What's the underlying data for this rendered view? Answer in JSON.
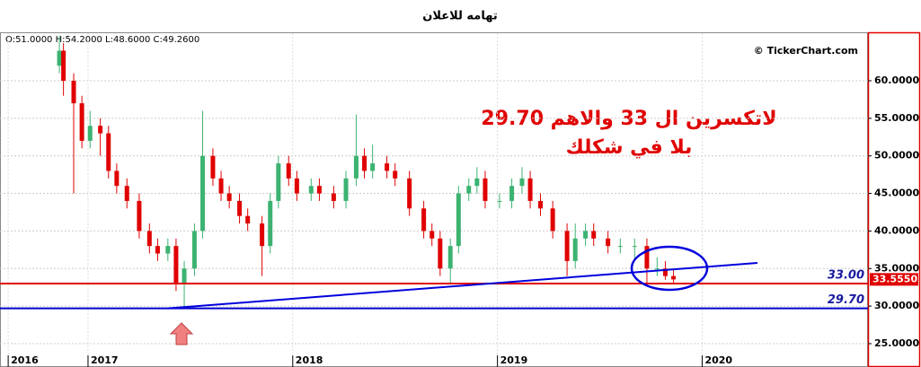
{
  "chart_data": {
    "type": "candlestick",
    "title": "تهامه للاعلان",
    "ohlc": "O:51.0000  H:54.2000  L:48.6000  C:49.2600",
    "watermark": "© TickerChart.com",
    "annotation": [
      "لاتكسرين ال 33 والاهم 29.70",
      "بلا في شكلك"
    ],
    "x": [
      2016.86,
      2016.88,
      2016.93,
      2016.97,
      2017.01,
      2017.06,
      2017.1,
      2017.14,
      2017.19,
      2017.25,
      2017.3,
      2017.34,
      2017.39,
      2017.43,
      2017.47,
      2017.52,
      2017.56,
      2017.61,
      2017.65,
      2017.69,
      2017.74,
      2017.78,
      2017.85,
      2017.89,
      2017.93,
      2017.98,
      2018.02,
      2018.09,
      2018.13,
      2018.2,
      2018.26,
      2018.31,
      2018.35,
      2018.39,
      2018.46,
      2018.5,
      2018.57,
      2018.64,
      2018.68,
      2018.72,
      2018.77,
      2018.81,
      2018.86,
      2018.9,
      2018.94,
      2019.01,
      2019.07,
      2019.12,
      2019.16,
      2019.21,
      2019.27,
      2019.34,
      2019.38,
      2019.43,
      2019.47,
      2019.54,
      2019.6,
      2019.67,
      2019.73,
      2019.78,
      2019.82,
      2019.86
    ],
    "open": [
      62,
      64,
      60,
      57,
      52,
      54,
      53,
      48,
      46,
      44,
      40,
      38,
      37,
      38,
      33,
      35,
      40,
      50,
      47,
      45,
      44,
      42,
      41,
      38,
      44,
      49,
      47,
      45,
      46,
      45,
      44,
      47,
      50,
      48,
      49,
      48,
      47,
      43,
      40,
      39,
      35,
      38,
      45,
      46,
      47,
      44,
      44,
      46,
      47,
      44,
      43,
      40,
      36,
      39,
      40,
      39,
      38,
      38,
      38,
      35,
      35,
      34
    ],
    "high": [
      66,
      65,
      61,
      58,
      56,
      55,
      54,
      49,
      47,
      45,
      41,
      39,
      39,
      39,
      36,
      41,
      56,
      51,
      48,
      46,
      45,
      43,
      42,
      45,
      50,
      50,
      48,
      47,
      47,
      46,
      48,
      55.5,
      51,
      51.5,
      50,
      49,
      48,
      44,
      41,
      40,
      39,
      46,
      47,
      48.5,
      48,
      45,
      47,
      48.5,
      48,
      45,
      44,
      41,
      41,
      41,
      41,
      40,
      39,
      39,
      39,
      36.5,
      36,
      35
    ],
    "low": [
      61,
      58,
      45,
      51,
      51,
      50,
      47,
      45,
      43,
      39,
      37,
      36,
      36,
      32,
      29.7,
      34,
      39,
      46,
      44,
      43,
      41,
      40,
      34,
      37,
      43,
      46,
      44,
      44,
      44,
      43,
      43,
      46,
      47,
      47,
      47,
      46,
      42,
      39,
      38,
      34,
      33,
      37,
      44,
      45,
      43,
      43,
      43,
      45,
      43,
      42,
      39,
      34,
      35,
      38,
      38,
      37,
      37,
      36,
      33,
      34,
      33.5,
      33
    ],
    "close": [
      64,
      60,
      57,
      52,
      54,
      53,
      48,
      46,
      44,
      40,
      38,
      37,
      38,
      33,
      35,
      40,
      50,
      47,
      45,
      44,
      42,
      41,
      38,
      44,
      49,
      47,
      45,
      46,
      45,
      44,
      47,
      50,
      48,
      49,
      48,
      47,
      43,
      40,
      39,
      35,
      38,
      45,
      46,
      47,
      44,
      44,
      46,
      47,
      44,
      43,
      40,
      36,
      39,
      40,
      39,
      38,
      38,
      38,
      35,
      35,
      34,
      33.555
    ],
    "up_color": "#3cb371",
    "down_color": "#e00000",
    "xlim": [
      2016.57,
      2020.81
    ],
    "xticks": [
      {
        "value": 2016.61,
        "label": "2016"
      },
      2017,
      2018,
      2019,
      2020
    ],
    "ylim": [
      22.37,
      66.33
    ],
    "yticks": [
      {
        "value": 25,
        "label": "25.0000"
      },
      {
        "value": 30,
        "label": "30.0000"
      },
      {
        "value": 35,
        "label": "35.0000"
      },
      {
        "value": 40,
        "label": "40.0000"
      },
      {
        "value": 45,
        "label": "45.0000"
      },
      {
        "value": 50,
        "label": "50.0000"
      },
      {
        "value": 55,
        "label": "55.0000"
      },
      {
        "value": 60,
        "label": "60.0000"
      }
    ],
    "grid": true,
    "levels": [
      {
        "value": 33,
        "label": "33.00",
        "color": "#e00000"
      },
      {
        "value": 29.7,
        "label": "29.70",
        "color": "#0000cc"
      }
    ],
    "trendline": {
      "x": [
        2017.39,
        2020.27
      ],
      "y": [
        29.7,
        35.75
      ],
      "color": "#0000dd"
    },
    "last_price": {
      "value": 33.555,
      "label": "33.5550"
    }
  }
}
